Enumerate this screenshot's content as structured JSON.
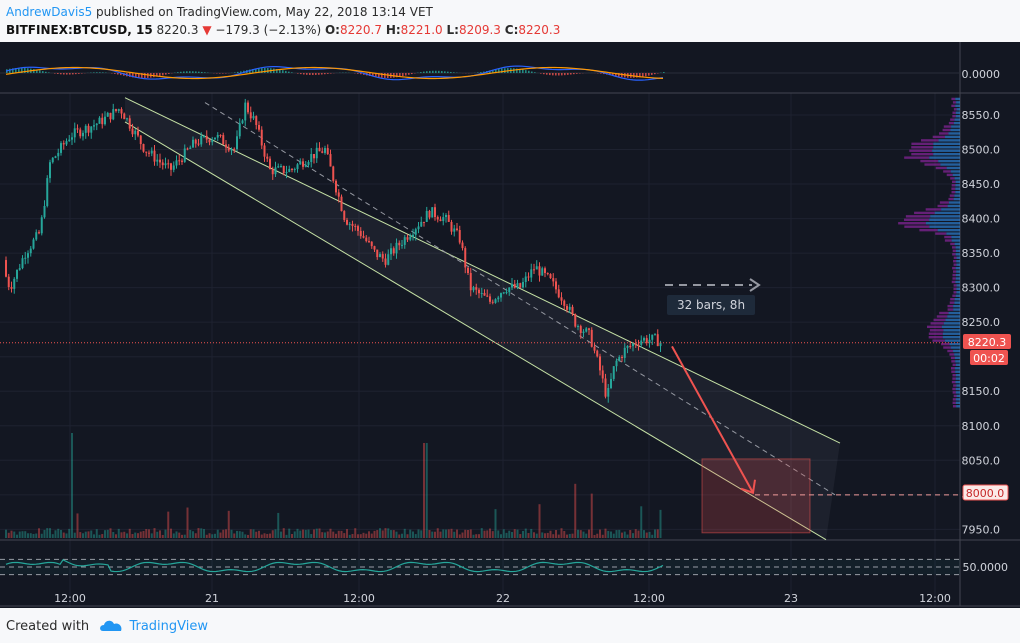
{
  "header": {
    "author": "AndrewDavis5",
    "published": "published on TradingView.com, May 22, 2018 13:14 VET",
    "symbol": "BITFINEX:BTCUSD, 15",
    "last": "8220.3",
    "change": "−179.3 (−2.13%)",
    "open_label": "O:",
    "open": "8220.7",
    "high_label": "H:",
    "high": "8221.0",
    "low_label": "L:",
    "low": "8209.3",
    "close_label": "C:",
    "close": "8220.3"
  },
  "footer": {
    "created_with": "Created with",
    "brand": "TradingView"
  },
  "colors": {
    "background": "#131722",
    "up": "#26a69a",
    "down": "#ef5350",
    "channel": "#c5e1a5",
    "macd": "#2962ff",
    "signal": "#ff9800",
    "rsi": "#26a69a",
    "target": "#ef5350",
    "profile_buy": "#2e86de",
    "profile_sell": "#9c27b0"
  },
  "chart_data": {
    "type": "candlestick",
    "timeframe": "15",
    "x_ticks": [
      "12:00",
      "21",
      "12:00",
      "22",
      "12:00",
      "23",
      "12:00"
    ],
    "price_axis": {
      "ticks": [
        8550,
        8500,
        8450,
        8400,
        8350,
        8300,
        8250,
        8200,
        8150,
        8100,
        8050,
        8000,
        7950
      ],
      "tick_labels": [
        "8550.0",
        "8500.0",
        "8450.0",
        "8400.0",
        "8350.0",
        "8300.0",
        "8250.0",
        "8200.0",
        "8150.0",
        "8100.0",
        "8050.0",
        "8000.0",
        "7950.0"
      ],
      "range": [
        7935,
        8575
      ]
    },
    "last_price": 8220.3,
    "last_price_label": "8220.3",
    "countdown": "00:02",
    "target_price": 8000,
    "target_label": "8000.0",
    "measure_label": "32 bars, 8h",
    "price_path": [
      [
        0,
        8340
      ],
      [
        10,
        8300
      ],
      [
        25,
        8350
      ],
      [
        40,
        8380
      ],
      [
        50,
        8480
      ],
      [
        70,
        8520
      ],
      [
        100,
        8540
      ],
      [
        120,
        8560
      ],
      [
        145,
        8500
      ],
      [
        170,
        8470
      ],
      [
        195,
        8510
      ],
      [
        215,
        8520
      ],
      [
        235,
        8500
      ],
      [
        245,
        8565
      ],
      [
        255,
        8540
      ],
      [
        270,
        8470
      ],
      [
        290,
        8470
      ],
      [
        310,
        8490
      ],
      [
        325,
        8500
      ],
      [
        345,
        8400
      ],
      [
        360,
        8380
      ],
      [
        375,
        8350
      ],
      [
        385,
        8340
      ],
      [
        410,
        8380
      ],
      [
        430,
        8410
      ],
      [
        445,
        8400
      ],
      [
        460,
        8370
      ],
      [
        470,
        8300
      ],
      [
        490,
        8280
      ],
      [
        505,
        8300
      ],
      [
        520,
        8300
      ],
      [
        535,
        8330
      ],
      [
        550,
        8310
      ],
      [
        565,
        8280
      ],
      [
        575,
        8250
      ],
      [
        590,
        8230
      ],
      [
        600,
        8180
      ],
      [
        607,
        8140
      ],
      [
        615,
        8190
      ],
      [
        625,
        8210
      ],
      [
        640,
        8225
      ],
      [
        655,
        8225
      ],
      [
        662,
        8220.3
      ]
    ],
    "channel": {
      "upper": [
        [
          125,
          8575
        ],
        [
          840,
          8075
        ]
      ],
      "lower": [
        [
          125,
          8540
        ],
        [
          826,
          7935
        ]
      ],
      "mid_start_price": 8568,
      "mid_end_price": 8000
    },
    "target_box": {
      "x": [
        702,
        810
      ],
      "price": [
        7945,
        8052
      ]
    },
    "forecast_arrow": {
      "from_price": 8215,
      "to_price": 8003
    },
    "macd": {
      "label": "0.0000",
      "value": 0
    },
    "rsi": {
      "label": "50.0000",
      "levels": [
        70,
        50,
        30
      ],
      "value": 50
    }
  }
}
